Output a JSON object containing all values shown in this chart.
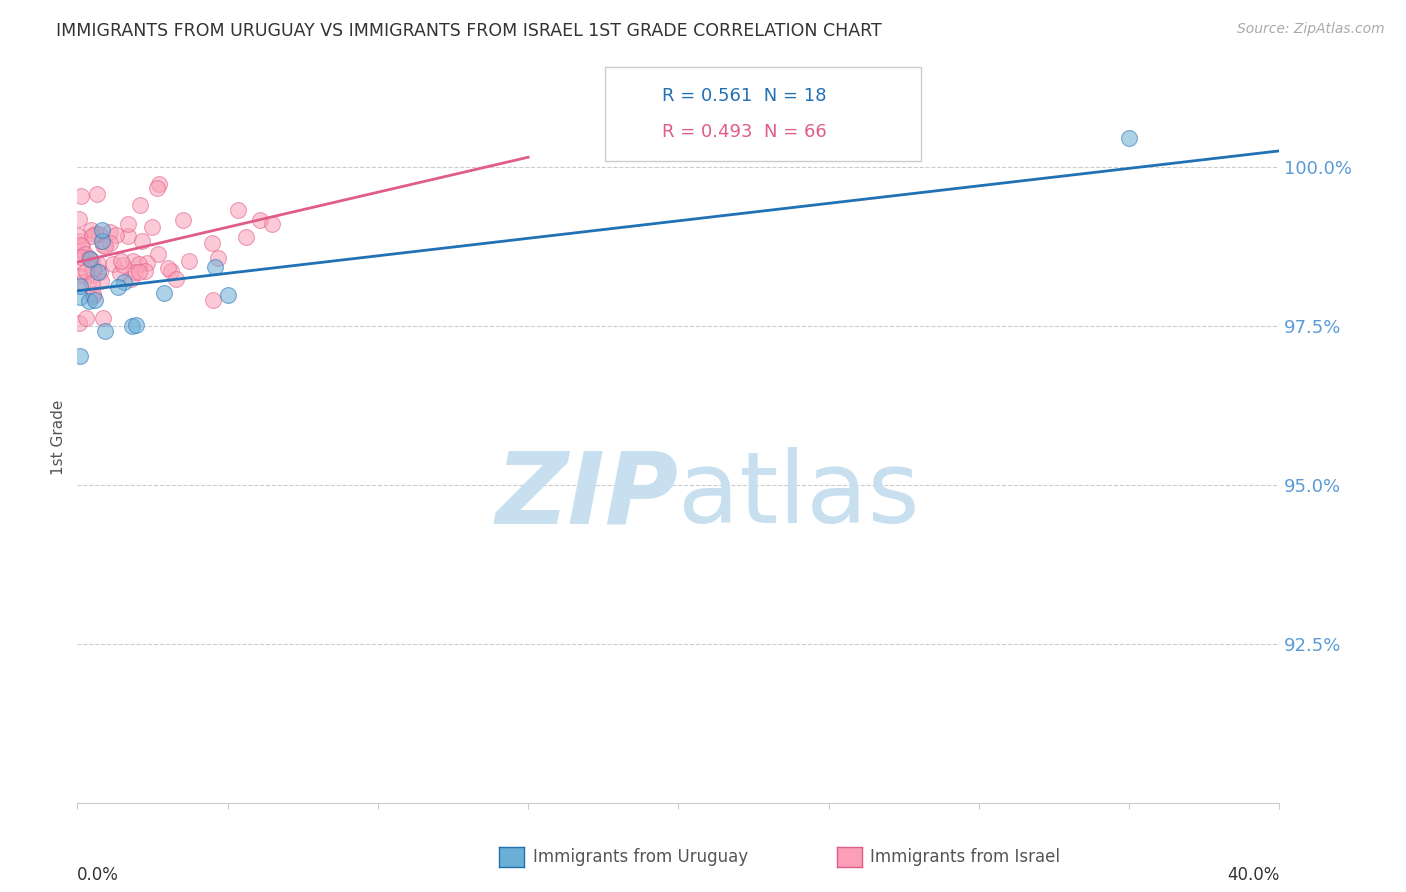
{
  "title": "IMMIGRANTS FROM URUGUAY VS IMMIGRANTS FROM ISRAEL 1ST GRADE CORRELATION CHART",
  "source": "Source: ZipAtlas.com",
  "ylabel": "1st Grade",
  "xmin": 0.0,
  "xmax": 40.0,
  "ymin": 90.0,
  "ymax": 101.5,
  "yticks": [
    92.5,
    95.0,
    97.5,
    100.0
  ],
  "ytick_labels": [
    "92.5%",
    "95.0%",
    "97.5%",
    "100.0%"
  ],
  "legend_blue_r": "0.561",
  "legend_blue_n": "18",
  "legend_pink_r": "0.493",
  "legend_pink_n": "66",
  "blue_color": "#6baed6",
  "pink_color": "#fa9fb5",
  "blue_line_color": "#2171b5",
  "pink_line_color": "#e05c8a",
  "watermark_zip": "ZIP",
  "watermark_atlas": "atlas",
  "watermark_color_zip": "#c8dff0",
  "watermark_color_atlas": "#c8dff0",
  "background_color": "#ffffff",
  "grid_color": "#cccccc",
  "right_axis_color": "#5b9bd5",
  "title_color": "#333333",
  "blue_line_x0": 0.0,
  "blue_line_y0": 98.05,
  "blue_line_x1": 40.0,
  "blue_line_y1": 100.25,
  "pink_line_x0": 0.0,
  "pink_line_y0": 98.5,
  "pink_line_x1": 15.0,
  "pink_line_y1": 100.15
}
